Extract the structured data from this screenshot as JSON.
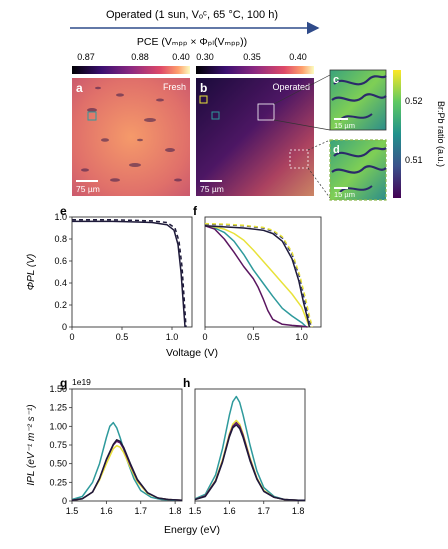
{
  "header": {
    "title": "Operated (1 sun, Vₒᶜ, 65 °C, 100 h)",
    "pce_label": "PCE (Vₘₚₚ × Φₚₗ(Vₘₚₚ))"
  },
  "colorbars": {
    "fresh_ticks": [
      "0.87",
      "0.88",
      "0.40"
    ],
    "operated_ticks": [
      "0.30",
      "0.35",
      "0.40"
    ],
    "brpb_ticks": [
      "0.52",
      "0.51"
    ],
    "brpb_label": "Br:Pb ratio (a.u.)"
  },
  "maps": {
    "a": {
      "letter": "a",
      "tag": "Fresh",
      "scale": "75 µm"
    },
    "b": {
      "letter": "b",
      "tag": "Operated",
      "scale": "75 µm"
    },
    "c": {
      "letter": "c",
      "scale": "15 µm"
    },
    "d": {
      "letter": "d",
      "scale": "15 µm"
    }
  },
  "colors": {
    "teal": "#2e9a9c",
    "yellow": "#e8e23a",
    "purple": "#5b1660",
    "dark": "#1e1a3a",
    "navy": "#29306a",
    "arrow": "#2f4b8a"
  },
  "chart_data": [
    {
      "id": "e",
      "type": "line",
      "letter": "e",
      "ylabel": "ΦPL (V)",
      "xlabel": "",
      "xlim": [
        0,
        1.2
      ],
      "ylim": [
        0,
        1.0
      ],
      "xticks": [
        "0",
        "0.5",
        "1.0"
      ],
      "yticks": [
        "0",
        "0.2",
        "0.4",
        "0.6",
        "0.8",
        "1.0"
      ],
      "series": [
        {
          "color": "#1e1a3a",
          "dash": false,
          "x": [
            0,
            0.2,
            0.4,
            0.6,
            0.8,
            0.95,
            1.02,
            1.06,
            1.09,
            1.11,
            1.13
          ],
          "y": [
            0.96,
            0.96,
            0.96,
            0.955,
            0.95,
            0.93,
            0.88,
            0.75,
            0.5,
            0.25,
            0
          ]
        },
        {
          "color": "#1e1a3a",
          "dash": true,
          "x": [
            0,
            0.2,
            0.4,
            0.6,
            0.8,
            0.95,
            1.03,
            1.07,
            1.1,
            1.12,
            1.14
          ],
          "y": [
            0.975,
            0.975,
            0.975,
            0.97,
            0.965,
            0.95,
            0.9,
            0.78,
            0.55,
            0.28,
            0
          ]
        }
      ]
    },
    {
      "id": "f",
      "type": "line",
      "letter": "f",
      "ylabel": "",
      "xlabel": "",
      "xlim": [
        0,
        1.2
      ],
      "ylim": [
        0,
        1.0
      ],
      "xticks": [
        "0",
        "0.5",
        "1.0"
      ],
      "yticks": [],
      "series": [
        {
          "color": "#2e9a9c",
          "dash": false,
          "x": [
            0,
            0.1,
            0.2,
            0.3,
            0.4,
            0.5,
            0.6,
            0.7,
            0.8,
            0.9,
            1.0,
            1.05
          ],
          "y": [
            0.92,
            0.9,
            0.86,
            0.78,
            0.66,
            0.52,
            0.4,
            0.28,
            0.17,
            0.1,
            0.04,
            0
          ]
        },
        {
          "color": "#e8e23a",
          "dash": false,
          "x": [
            0,
            0.1,
            0.2,
            0.3,
            0.4,
            0.5,
            0.6,
            0.7,
            0.8,
            0.9,
            1.0,
            1.08
          ],
          "y": [
            0.92,
            0.91,
            0.89,
            0.85,
            0.79,
            0.7,
            0.6,
            0.5,
            0.4,
            0.3,
            0.18,
            0
          ]
        },
        {
          "color": "#5b1660",
          "dash": false,
          "x": [
            0,
            0.1,
            0.2,
            0.3,
            0.4,
            0.5,
            0.55,
            0.6,
            0.65,
            0.7,
            0.8,
            0.9,
            1.0,
            1.06
          ],
          "y": [
            0.92,
            0.89,
            0.8,
            0.68,
            0.55,
            0.44,
            0.36,
            0.26,
            0.15,
            0.07,
            0.025,
            0.015,
            0.008,
            0
          ]
        },
        {
          "color": "#1e1a3a",
          "dash": false,
          "x": [
            0,
            0.2,
            0.4,
            0.6,
            0.7,
            0.8,
            0.9,
            0.97,
            1.02,
            1.06,
            1.08
          ],
          "y": [
            0.92,
            0.91,
            0.9,
            0.88,
            0.85,
            0.78,
            0.62,
            0.42,
            0.22,
            0.08,
            0
          ]
        },
        {
          "color": "#29306a",
          "dash": true,
          "x": [
            0,
            0.2,
            0.4,
            0.6,
            0.7,
            0.8,
            0.9,
            0.98,
            1.03,
            1.07,
            1.1
          ],
          "y": [
            0.935,
            0.93,
            0.92,
            0.9,
            0.87,
            0.81,
            0.66,
            0.45,
            0.24,
            0.09,
            0
          ]
        },
        {
          "color": "#e8e23a",
          "dash": true,
          "x": [
            0,
            0.2,
            0.4,
            0.6,
            0.7,
            0.8,
            0.9,
            0.98,
            1.04,
            1.08,
            1.11
          ],
          "y": [
            0.94,
            0.935,
            0.925,
            0.905,
            0.88,
            0.82,
            0.68,
            0.47,
            0.26,
            0.1,
            0
          ]
        }
      ]
    },
    {
      "id": "g",
      "type": "line",
      "letter": "g",
      "ylabel": "IPL (eV⁻¹ m⁻² s⁻¹)",
      "xlabel": "",
      "exponent": "1e19",
      "xlim": [
        1.5,
        1.82
      ],
      "ylim": [
        0,
        1.5
      ],
      "xticks": [
        "1.5",
        "1.6",
        "1.7",
        "1.8"
      ],
      "yticks": [
        "0",
        "0.25",
        "0.50",
        "0.75",
        "1.00",
        "1.25",
        "1.50"
      ],
      "series": [
        {
          "color": "#2e9a9c",
          "dash": false,
          "x": [
            1.5,
            1.53,
            1.56,
            1.58,
            1.6,
            1.61,
            1.62,
            1.63,
            1.64,
            1.66,
            1.68,
            1.7,
            1.73,
            1.76,
            1.8,
            1.82
          ],
          "y": [
            0.02,
            0.06,
            0.25,
            0.5,
            0.85,
            1.0,
            1.05,
            0.98,
            0.85,
            0.55,
            0.3,
            0.14,
            0.05,
            0.02,
            0.01,
            0.01
          ]
        },
        {
          "color": "#e8e23a",
          "dash": false,
          "x": [
            1.5,
            1.53,
            1.56,
            1.58,
            1.6,
            1.62,
            1.63,
            1.64,
            1.65,
            1.67,
            1.69,
            1.72,
            1.75,
            1.78,
            1.82
          ],
          "y": [
            0.01,
            0.03,
            0.12,
            0.28,
            0.5,
            0.7,
            0.74,
            0.72,
            0.65,
            0.45,
            0.26,
            0.1,
            0.04,
            0.02,
            0.01
          ]
        },
        {
          "color": "#5b1660",
          "dash": false,
          "x": [
            1.5,
            1.53,
            1.56,
            1.58,
            1.6,
            1.62,
            1.63,
            1.64,
            1.65,
            1.67,
            1.69,
            1.72,
            1.75,
            1.78,
            1.82
          ],
          "y": [
            0.01,
            0.03,
            0.12,
            0.3,
            0.55,
            0.75,
            0.8,
            0.78,
            0.7,
            0.48,
            0.28,
            0.11,
            0.04,
            0.02,
            0.01
          ]
        },
        {
          "color": "#1e1a3a",
          "dash": false,
          "x": [
            1.5,
            1.53,
            1.56,
            1.58,
            1.6,
            1.62,
            1.63,
            1.64,
            1.65,
            1.67,
            1.69,
            1.72,
            1.75,
            1.78,
            1.82
          ],
          "y": [
            0.01,
            0.03,
            0.12,
            0.3,
            0.56,
            0.76,
            0.82,
            0.8,
            0.72,
            0.5,
            0.29,
            0.11,
            0.04,
            0.02,
            0.01
          ]
        }
      ]
    },
    {
      "id": "h",
      "type": "line",
      "letter": "h",
      "ylabel": "",
      "xlabel": "",
      "xlim": [
        1.5,
        1.82
      ],
      "ylim": [
        0,
        1.5
      ],
      "xticks": [
        "1.5",
        "1.6",
        "1.7",
        "1.8"
      ],
      "yticks": [],
      "series": [
        {
          "color": "#2e9a9c",
          "dash": false,
          "x": [
            1.5,
            1.53,
            1.56,
            1.58,
            1.6,
            1.61,
            1.62,
            1.63,
            1.64,
            1.66,
            1.68,
            1.7,
            1.73,
            1.76,
            1.8,
            1.82
          ],
          "y": [
            0.03,
            0.09,
            0.35,
            0.7,
            1.15,
            1.33,
            1.4,
            1.32,
            1.15,
            0.75,
            0.4,
            0.18,
            0.06,
            0.02,
            0.01,
            0.01
          ]
        },
        {
          "color": "#e8e23a",
          "dash": false,
          "x": [
            1.5,
            1.53,
            1.56,
            1.58,
            1.6,
            1.61,
            1.62,
            1.63,
            1.64,
            1.66,
            1.68,
            1.7,
            1.73,
            1.76,
            1.8,
            1.82
          ],
          "y": [
            0.02,
            0.07,
            0.28,
            0.55,
            0.9,
            1.03,
            1.08,
            1.03,
            0.9,
            0.58,
            0.31,
            0.14,
            0.05,
            0.02,
            0.01,
            0.01
          ]
        },
        {
          "color": "#5b1660",
          "dash": false,
          "x": [
            1.5,
            1.53,
            1.56,
            1.58,
            1.6,
            1.61,
            1.62,
            1.63,
            1.64,
            1.66,
            1.68,
            1.7,
            1.73,
            1.76,
            1.8,
            1.82
          ],
          "y": [
            0.02,
            0.07,
            0.27,
            0.53,
            0.88,
            1.0,
            1.05,
            1.0,
            0.88,
            0.56,
            0.3,
            0.13,
            0.05,
            0.02,
            0.01,
            0.01
          ]
        },
        {
          "color": "#1e1a3a",
          "dash": false,
          "x": [
            1.5,
            1.53,
            1.56,
            1.58,
            1.6,
            1.61,
            1.62,
            1.63,
            1.64,
            1.66,
            1.68,
            1.7,
            1.73,
            1.76,
            1.8,
            1.82
          ],
          "y": [
            0.02,
            0.06,
            0.26,
            0.52,
            0.86,
            0.98,
            1.02,
            0.97,
            0.85,
            0.54,
            0.29,
            0.13,
            0.05,
            0.02,
            0.01,
            0.01
          ]
        }
      ]
    }
  ],
  "axis_labels": {
    "voltage": "Voltage (V)",
    "energy": "Energy (eV)"
  }
}
